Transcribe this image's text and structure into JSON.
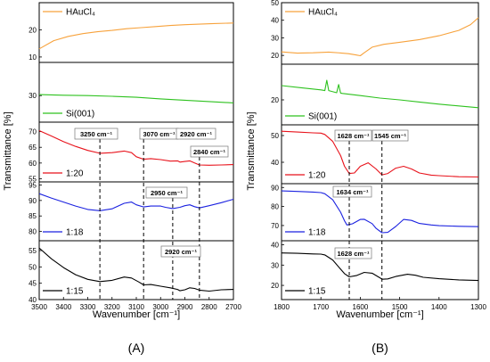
{
  "chart_data": [
    {
      "type": "line",
      "panel_label": "(A)",
      "xlabel": "Wavenumber [cm⁻¹]",
      "ylabel": "Transmittance [%]",
      "xlim": [
        3500,
        2700
      ],
      "x_ticks": [
        "3500",
        "3400",
        "3300",
        "3200",
        "3100",
        "3000",
        "2900",
        "2800",
        "2700"
      ],
      "series": [
        {
          "name": "HAuCl₄",
          "color": "#f7a23c",
          "ylim": [
            8,
            30
          ],
          "y_ticks": [
            "10",
            "20"
          ],
          "x": [
            3500,
            3440,
            3380,
            3320,
            3260,
            3200,
            3140,
            3080,
            3020,
            2960,
            2900,
            2840,
            2780,
            2700
          ],
          "values": [
            13.0,
            16.0,
            17.6,
            18.6,
            19.3,
            19.8,
            20.4,
            20.8,
            21.2,
            21.6,
            21.9,
            22.1,
            22.3,
            22.5
          ]
        },
        {
          "name": "Si(001)",
          "color": "#2ec21f",
          "ylim": [
            22,
            40
          ],
          "y_ticks": [
            "30"
          ],
          "x": [
            3500,
            3400,
            3300,
            3200,
            3100,
            3000,
            2900,
            2800,
            2700
          ],
          "values": [
            30.3,
            30.1,
            30.0,
            29.8,
            29.5,
            29.0,
            28.6,
            28.2,
            27.8
          ]
        },
        {
          "name": "1:20",
          "color": "#e8121b",
          "ylim": [
            54,
            73
          ],
          "y_ticks": [
            "55",
            "60",
            "65",
            "70"
          ],
          "x": [
            3500,
            3450,
            3400,
            3350,
            3300,
            3250,
            3200,
            3150,
            3120,
            3100,
            3070,
            3040,
            3000,
            2960,
            2930,
            2920,
            2900,
            2880,
            2860,
            2840,
            2800,
            2750,
            2700
          ],
          "values": [
            70.3,
            68.6,
            66.8,
            65.3,
            64.0,
            63.1,
            63.3,
            63.8,
            63.3,
            62.0,
            61.2,
            61.4,
            61.1,
            60.6,
            60.7,
            60.3,
            60.5,
            60.7,
            60.0,
            59.4,
            59.3,
            59.4,
            59.5
          ]
        },
        {
          "name": "1:18",
          "color": "#1b22e0",
          "ylim": [
            77,
            96
          ],
          "y_ticks": [
            "80",
            "85",
            "90",
            "95"
          ],
          "x": [
            3500,
            3450,
            3400,
            3350,
            3300,
            3250,
            3200,
            3150,
            3120,
            3100,
            3070,
            3040,
            3000,
            2980,
            2950,
            2920,
            2900,
            2880,
            2860,
            2840,
            2800,
            2750,
            2700
          ],
          "values": [
            92.2,
            90.8,
            89.5,
            88.2,
            87.1,
            86.7,
            87.3,
            89.1,
            89.5,
            88.6,
            87.9,
            88.2,
            88.2,
            87.8,
            87.4,
            87.8,
            88.3,
            88.6,
            88.0,
            87.6,
            88.3,
            89.3,
            90.4
          ]
        },
        {
          "name": "1:15",
          "color": "#000000",
          "ylim": [
            40,
            58
          ],
          "y_ticks": [
            "40",
            "45",
            "50",
            "55"
          ],
          "x": [
            3500,
            3450,
            3400,
            3350,
            3300,
            3250,
            3200,
            3150,
            3120,
            3090,
            3070,
            3040,
            3000,
            2960,
            2930,
            2920,
            2900,
            2880,
            2860,
            2840,
            2800,
            2750,
            2700
          ],
          "values": [
            55.8,
            52.5,
            49.8,
            47.6,
            46.2,
            45.5,
            45.9,
            46.9,
            46.6,
            45.4,
            44.5,
            44.6,
            44.1,
            43.6,
            43.1,
            42.7,
            43.0,
            43.6,
            43.4,
            42.9,
            42.6,
            43.0,
            43.1
          ]
        }
      ],
      "annotations": [
        {
          "label": "3250 cm⁻¹",
          "x": 3250
        },
        {
          "label": "3070 cm⁻¹",
          "x": 3070
        },
        {
          "label": "2920 cm⁻¹",
          "x": 2920
        },
        {
          "label": "2840 cm⁻¹",
          "x": 2840
        },
        {
          "label": "2950 cm⁻¹",
          "x": 2950
        },
        {
          "label": "2920 cm⁻¹",
          "x": 2920
        }
      ]
    },
    {
      "type": "line",
      "panel_label": "(B)",
      "xlabel": "Wavenumber [cm⁻¹]",
      "ylabel": "Transmittance [%]",
      "xlim": [
        1800,
        1300
      ],
      "x_ticks": [
        "1800",
        "1700",
        "1600",
        "1500",
        "1400",
        "1300"
      ],
      "series": [
        {
          "name": "HAuCl₄",
          "color": "#f7a23c",
          "ylim": [
            15,
            50
          ],
          "y_ticks": [
            "20",
            "30",
            "40",
            "50"
          ],
          "x": [
            1800,
            1760,
            1720,
            1680,
            1650,
            1630,
            1610,
            1600,
            1590,
            1570,
            1540,
            1500,
            1450,
            1400,
            1350,
            1320,
            1300
          ],
          "values": [
            22.0,
            21.3,
            21.5,
            21.9,
            21.4,
            21.0,
            20.2,
            19.8,
            21.5,
            24.7,
            26.3,
            27.5,
            29.0,
            31.2,
            34.2,
            37.5,
            41.5
          ]
        },
        {
          "name": "Si(001)",
          "color": "#2ec21f",
          "ylim": [
            13,
            30
          ],
          "y_ticks": [
            "20"
          ],
          "x": [
            1800,
            1750,
            1700,
            1690,
            1685,
            1680,
            1660,
            1655,
            1650,
            1645,
            1600,
            1550,
            1500,
            1450,
            1400,
            1350,
            1300
          ],
          "values": [
            24.0,
            23.4,
            22.8,
            22.6,
            25.5,
            22.6,
            22.0,
            24.3,
            21.9,
            21.8,
            21.2,
            20.5,
            20.0,
            19.4,
            18.8,
            18.3,
            17.8
          ]
        },
        {
          "name": "1:20",
          "color": "#e8121b",
          "ylim": [
            32,
            54
          ],
          "y_ticks": [
            "40",
            "50"
          ],
          "x": [
            1800,
            1760,
            1720,
            1700,
            1690,
            1670,
            1650,
            1640,
            1628,
            1615,
            1600,
            1580,
            1560,
            1545,
            1530,
            1510,
            1490,
            1470,
            1450,
            1420,
            1400,
            1350,
            1300
          ],
          "values": [
            51.6,
            51.3,
            51.0,
            50.9,
            50.4,
            47.8,
            42.5,
            38.5,
            35.8,
            36.0,
            38.5,
            39.8,
            37.5,
            35.3,
            35.8,
            37.8,
            38.5,
            37.5,
            36.0,
            35.2,
            35.0,
            34.6,
            34.5
          ]
        },
        {
          "name": "1:18",
          "color": "#1b22e0",
          "ylim": [
            62,
            92
          ],
          "y_ticks": [
            "70",
            "80",
            "90"
          ],
          "x": [
            1800,
            1760,
            1720,
            1700,
            1690,
            1670,
            1650,
            1640,
            1634,
            1620,
            1600,
            1590,
            1570,
            1560,
            1545,
            1530,
            1510,
            1490,
            1470,
            1450,
            1420,
            1400,
            1350,
            1300
          ],
          "values": [
            88.2,
            87.9,
            87.6,
            87.3,
            86.7,
            83.5,
            77.0,
            72.5,
            70.3,
            70.9,
            73.2,
            73.3,
            71.0,
            68.5,
            66.2,
            66.4,
            69.5,
            73.2,
            72.7,
            71.1,
            70.3,
            69.9,
            69.6,
            69.4
          ]
        },
        {
          "name": "1:15",
          "color": "#000000",
          "ylim": [
            13,
            42
          ],
          "y_ticks": [
            "20",
            "30",
            "40"
          ],
          "x": [
            1800,
            1760,
            1720,
            1700,
            1690,
            1670,
            1650,
            1640,
            1628,
            1610,
            1590,
            1570,
            1550,
            1545,
            1530,
            1510,
            1480,
            1460,
            1440,
            1400,
            1350,
            1300
          ],
          "values": [
            36.0,
            35.8,
            35.5,
            35.4,
            35.0,
            32.5,
            28.0,
            25.8,
            24.2,
            24.8,
            26.4,
            26.0,
            23.7,
            23.0,
            23.2,
            24.4,
            25.5,
            25.0,
            24.0,
            23.3,
            22.7,
            22.4
          ]
        }
      ],
      "annotations": [
        {
          "label": "1628 cm⁻¹",
          "x": 1628
        },
        {
          "label": "1545 cm⁻¹",
          "x": 1545
        },
        {
          "label": "1634 cm⁻¹",
          "x": 1634
        },
        {
          "label": "1628 cm⁻¹",
          "x": 1628
        }
      ]
    }
  ]
}
